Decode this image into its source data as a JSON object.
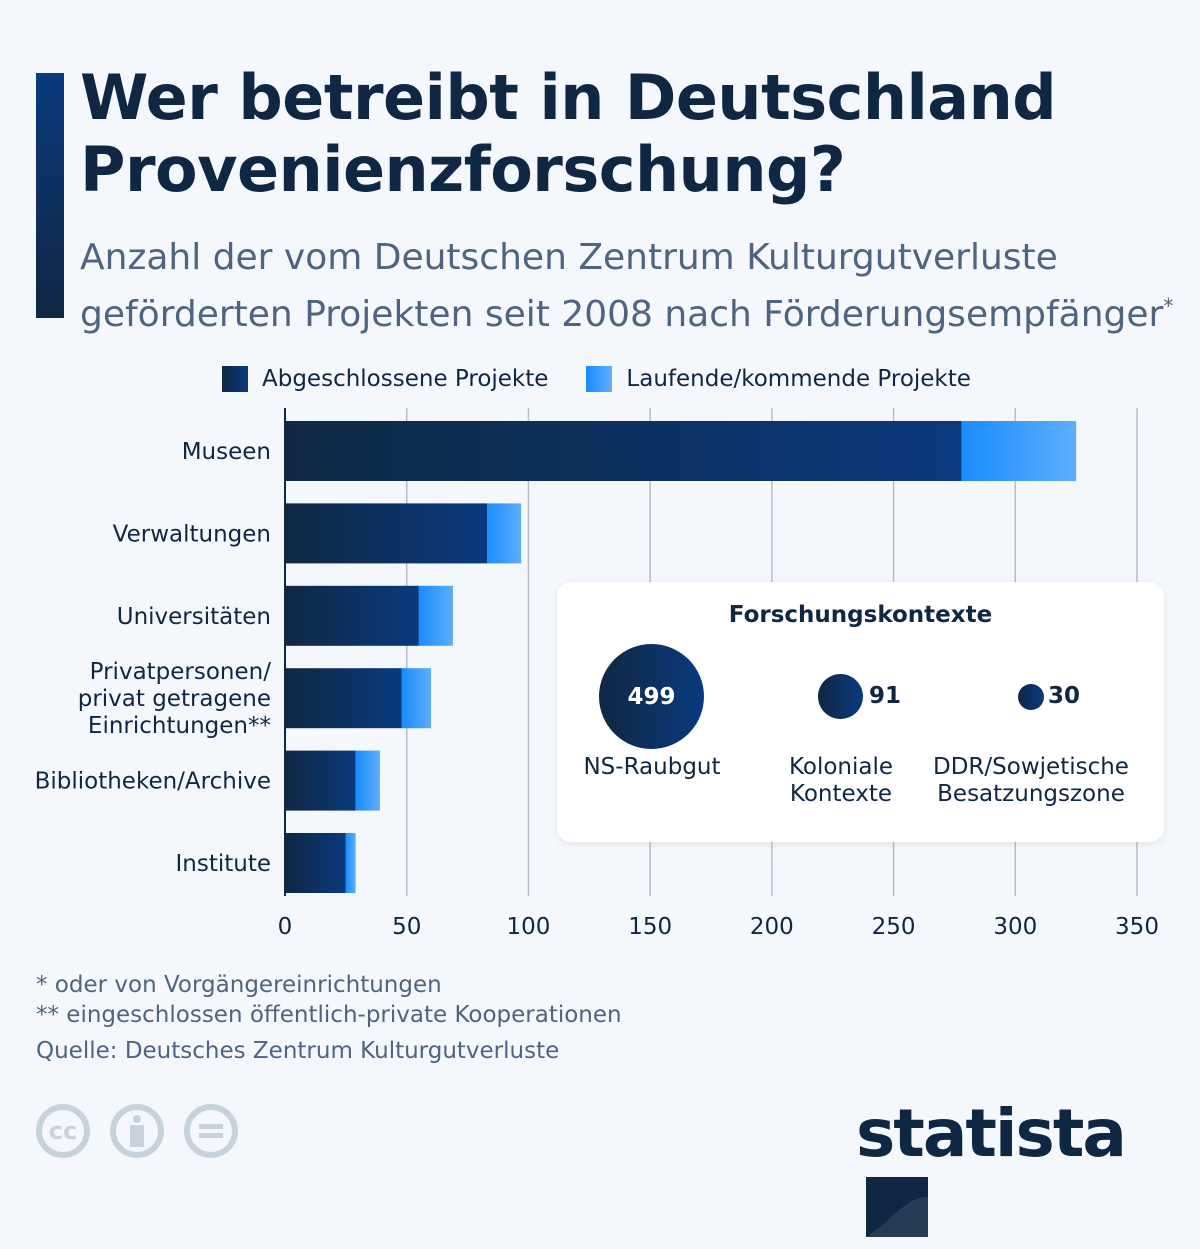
{
  "header": {
    "title_line1": "Wer betreibt in Deutschland",
    "title_line2": "Provenienzforschung?",
    "subtitle_line1": "Anzahl der vom Deutschen Zentrum Kulturgutverluste",
    "subtitle_line2": "geförderten Projekten seit 2008 nach Förderungsempfänger",
    "subtitle_mark": "*"
  },
  "chart_data": {
    "type": "bar",
    "orientation": "horizontal",
    "stacked": true,
    "categories": [
      "Museen",
      "Verwaltungen",
      "Universitäten",
      "Privatpersonen/ privat getragene Einrichtungen**",
      "Bibliotheken/Archive",
      "Institute"
    ],
    "category_lines": [
      [
        "Museen"
      ],
      [
        "Verwaltungen"
      ],
      [
        "Universitäten"
      ],
      [
        "Privatpersonen/",
        "privat getragene",
        "Einrichtungen**"
      ],
      [
        "Bibliotheken/Archive"
      ],
      [
        "Institute"
      ]
    ],
    "series": [
      {
        "name": "Abgeschlossene Projekte",
        "values": [
          278,
          83,
          55,
          48,
          29,
          25
        ],
        "color": "#0a3a7e"
      },
      {
        "name": "Laufende/kommende Projekte",
        "values": [
          47,
          14,
          14,
          12,
          10,
          4
        ],
        "color": "#1a8cff"
      }
    ],
    "xlim": [
      0,
      350
    ],
    "xticks": [
      0,
      50,
      100,
      150,
      200,
      250,
      300,
      350
    ],
    "grid": true,
    "legend": "top"
  },
  "inset": {
    "title": "Forschungskontexte",
    "items": [
      {
        "value": "499",
        "label1": "NS-Raubgut",
        "label2": ""
      },
      {
        "value": "91",
        "label1": "Koloniale",
        "label2": "Kontexte"
      },
      {
        "value": "30",
        "label1": "DDR/Sowjetische",
        "label2": "Besatzungszone"
      }
    ]
  },
  "footer": {
    "note1": "*   oder von Vorgängereinrichtungen",
    "note2": "** eingeschlossen öffentlich-private Kooperationen",
    "source": "Quelle: Deutsches Zentrum Kulturgutverluste",
    "logo": "statista",
    "cc_icons": [
      "cc-icon",
      "attribution-icon",
      "no-derivatives-icon"
    ]
  }
}
